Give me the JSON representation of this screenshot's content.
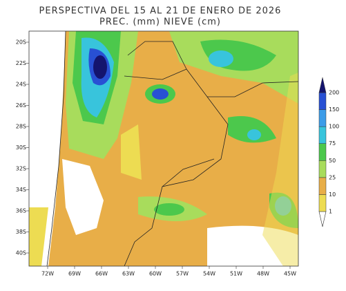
{
  "title": [
    "PERSPECTIVA DEL 15 AL 21 DE ENERO DE 2026",
    "PREC. (mm) NIEVE (cm)"
  ],
  "lat_labels": [
    "20S",
    "22S",
    "24S",
    "26S",
    "28S",
    "30S",
    "32S",
    "34S",
    "36S",
    "38S",
    "40S"
  ],
  "lon_labels": [
    "72W",
    "69W",
    "66W",
    "63W",
    "60W",
    "57W",
    "54W",
    "51W",
    "48W",
    "45W"
  ],
  "colorbar": {
    "labels": [
      "1",
      "10",
      "25",
      "50",
      "75",
      "100",
      "150",
      "200"
    ],
    "colors": [
      "#eddc52",
      "#e8ae48",
      "#a8dc5c",
      "#4cc84c",
      "#38c4dc",
      "#3c9ce8",
      "#2850d4",
      "#14146e"
    ]
  }
}
